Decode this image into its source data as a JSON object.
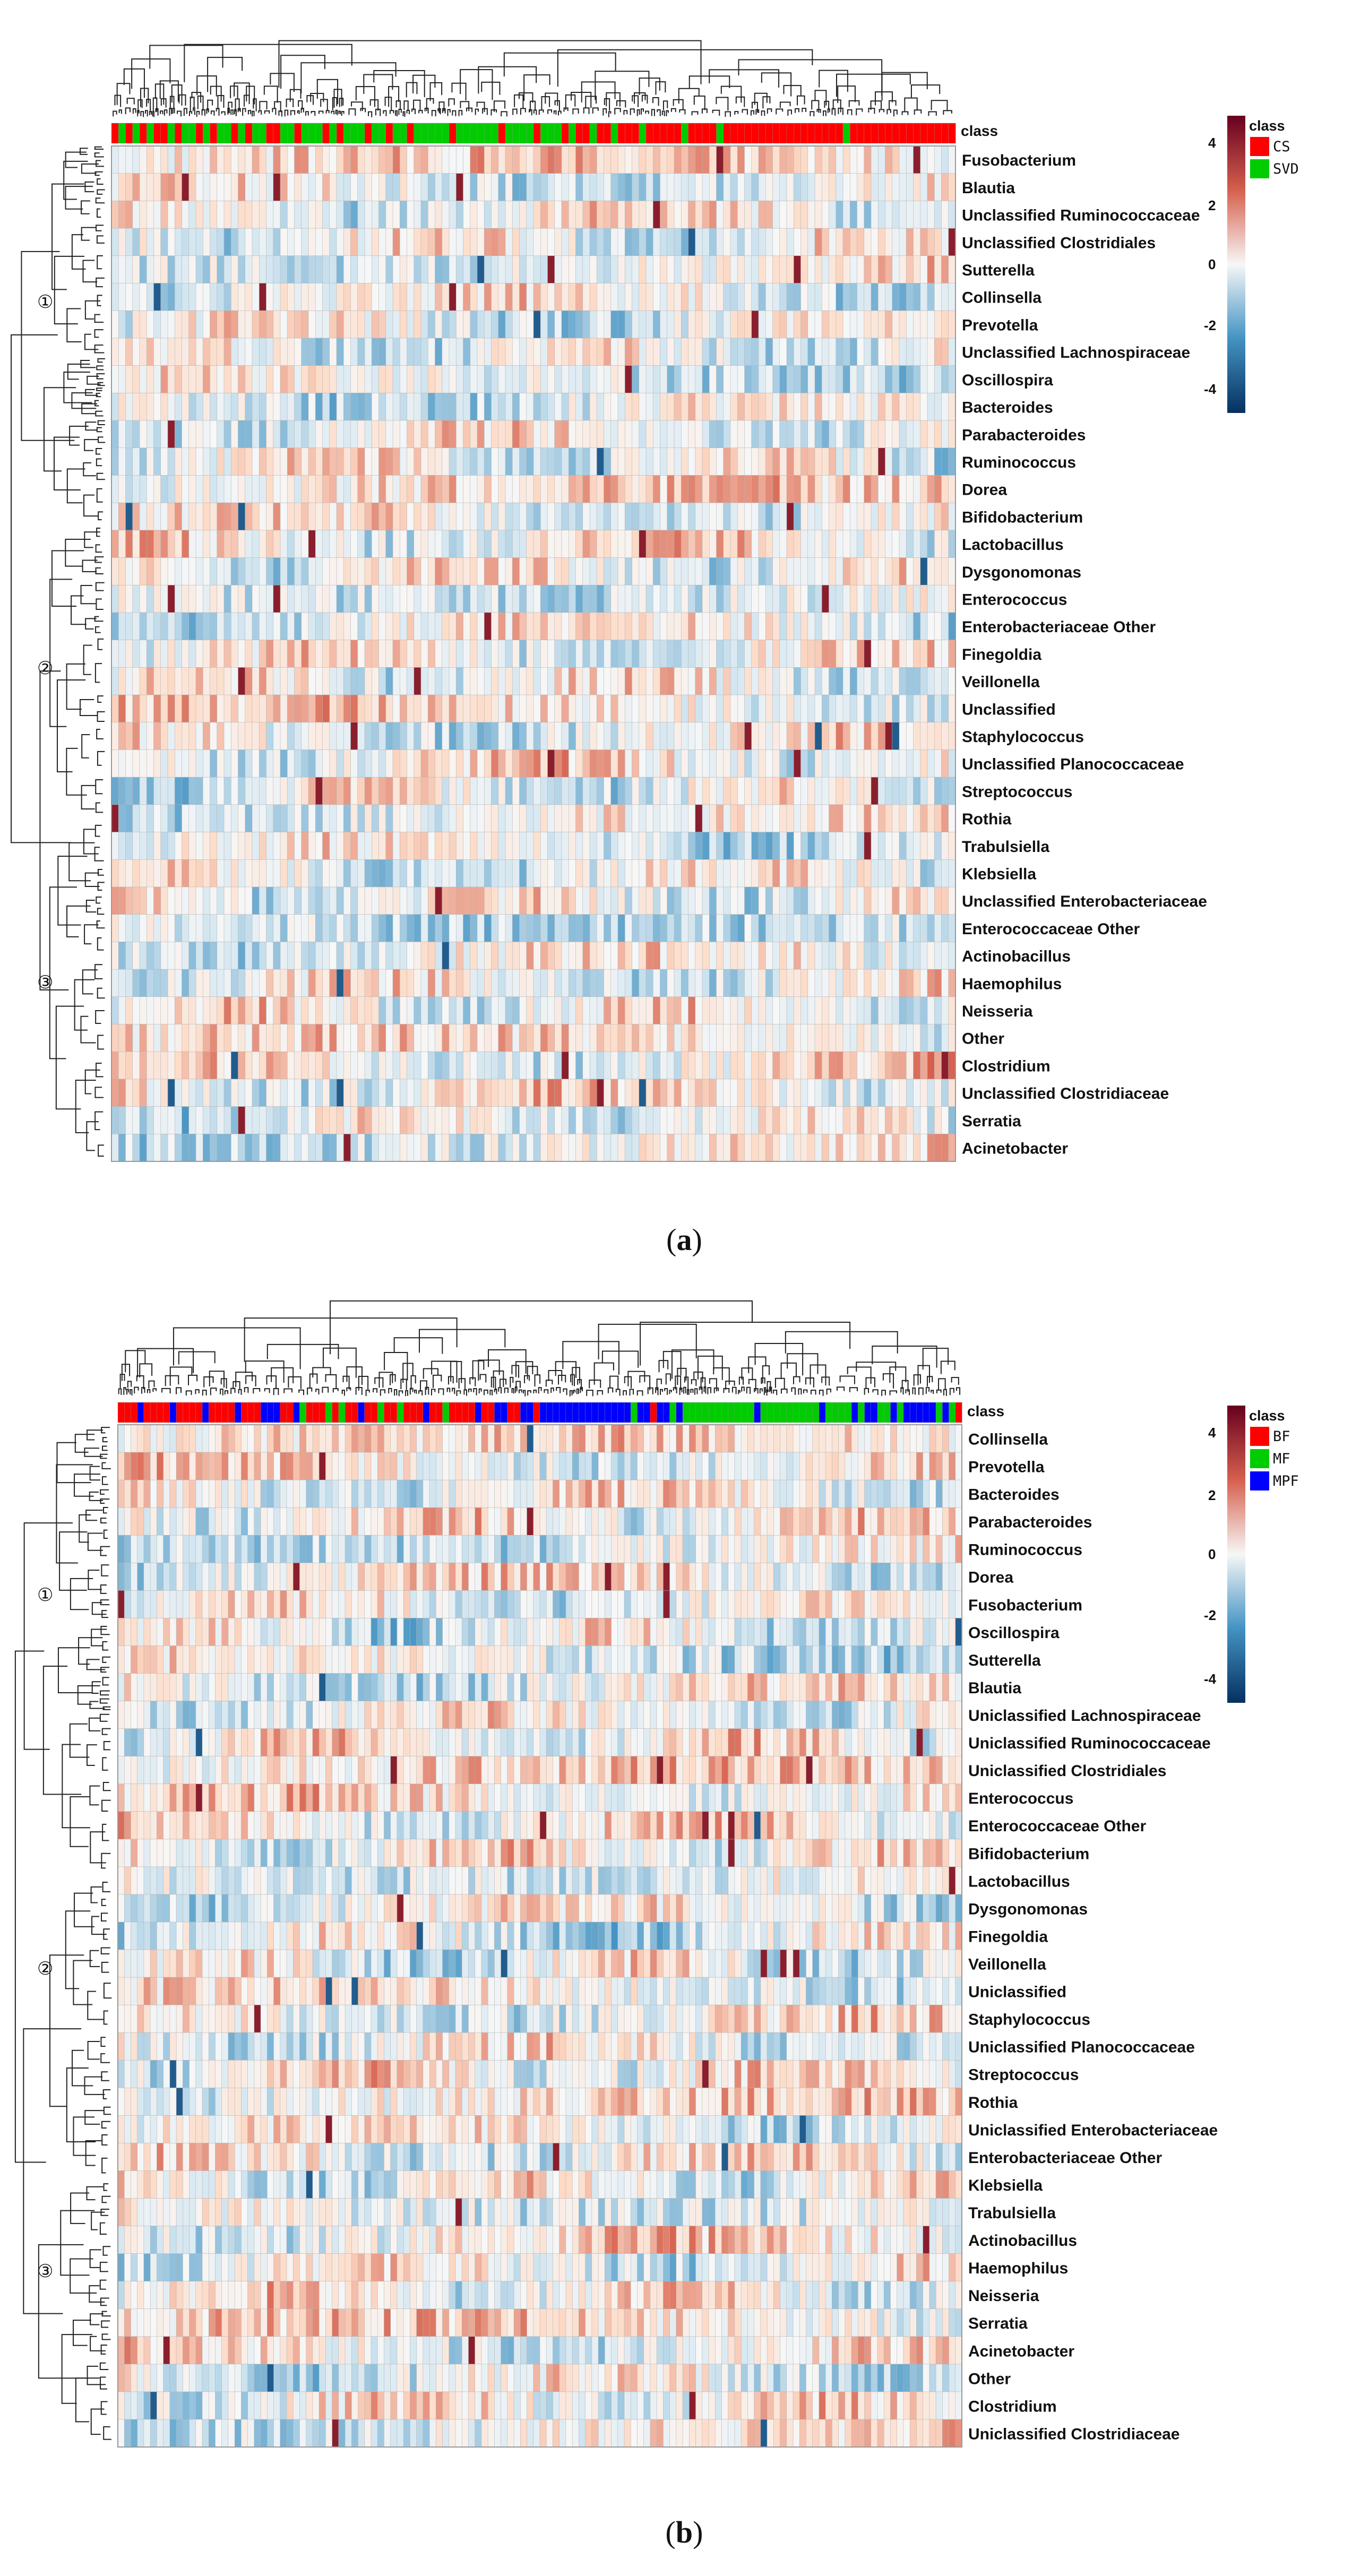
{
  "chart_data": [
    {
      "type": "heatmap",
      "panel": "a",
      "caption": "(a)",
      "class_title": "class",
      "legend": {
        "title": "class",
        "entries": [
          {
            "label": "CS",
            "color": "#ff0000"
          },
          {
            "label": "SVD",
            "color": "#00cc00"
          }
        ]
      },
      "colorbar": {
        "ticks": [
          "4",
          "2",
          "0",
          "-2",
          "-4"
        ],
        "range": [
          -4.5,
          4.5
        ],
        "colors": [
          "#67001f",
          "#d6604d",
          "#f7f7f7",
          "#4393c3",
          "#053061"
        ]
      },
      "cluster_markers": [
        "①",
        "②",
        "③"
      ],
      "rows": [
        "Fusobacterium",
        "Blautia",
        "Unclassified Ruminococcaceae",
        "Unclassified Clostridiales",
        "Sutterella",
        "Collinsella",
        "Prevotella",
        "Unclassified Lachnospiraceae",
        "Oscillospira",
        "Bacteroides",
        "Parabacteroides",
        "Ruminococcus",
        "Dorea",
        "Bifidobacterium",
        "Lactobacillus",
        "Dysgonomonas",
        "Enterococcus",
        "Enterobacteriaceae Other",
        "Finegoldia",
        "Veillonella",
        "Unclassified",
        "Staphylococcus",
        "Unclassified Planococcaceae",
        "Streptococcus",
        "Rothia",
        "Trabulsiella",
        "Klebsiella",
        "Unclassified Enterobacteriaceae",
        "Enterococcaceae Other",
        "Actinobacillus",
        "Haemophilus",
        "Neisseria",
        "Other",
        "Clostridium",
        "Unclassified Clostridiaceae",
        "Serratia",
        "Acinetobacter"
      ],
      "n_samples": 120,
      "sample_classes": "RGRGRGRRGRGGRGRGGRGRGGRRGGRGGGRGRGGGRGGRGGRGGGGGRGGGGGGRGGGGRGGGRGRRGRRGRRRGRRRRRGRRRRGRRRRRRRRRRRRRRRRRGRRRRRRRRRRRRR",
      "class_codes": {
        "R": "CS",
        "G": "SVD"
      },
      "value_range": [
        -4.5,
        4.5
      ]
    },
    {
      "type": "heatmap",
      "panel": "b",
      "caption": "(b)",
      "class_title": "class",
      "legend": {
        "title": "class",
        "entries": [
          {
            "label": "BF",
            "color": "#ff0000"
          },
          {
            "label": "MF",
            "color": "#00cc00"
          },
          {
            "label": "MPF",
            "color": "#0000ff"
          }
        ]
      },
      "colorbar": {
        "ticks": [
          "4",
          "2",
          "0",
          "-2",
          "-4"
        ],
        "range": [
          -4.5,
          4.5
        ],
        "colors": [
          "#67001f",
          "#d6604d",
          "#f7f7f7",
          "#4393c3",
          "#053061"
        ]
      },
      "cluster_markers": [
        "①",
        "②",
        "③"
      ],
      "rows": [
        "Collinsella",
        "Prevotella",
        "Bacteroides",
        "Parabacteroides",
        "Ruminococcus",
        "Dorea",
        "Fusobacterium",
        "Oscillospira",
        "Sutterella",
        "Blautia",
        "Uniclassified Lachnospiraceae",
        "Uniclassified Ruminococcaceae",
        "Uniclassified Clostridiales",
        "Enterococcus",
        "Enterococcaceae Other",
        "Bifidobacterium",
        "Lactobacillus",
        "Dysgonomonas",
        "Finegoldia",
        "Veillonella",
        "Uniclassified",
        "Staphylococcus",
        "Uniclassified Planococcaceae",
        "Streptococcus",
        "Rothia",
        "Uniclassified Enterobacteriaceae",
        "Enterobacteriaceae Other",
        "Klebsiella",
        "Trabulsiella",
        "Actinobacillus",
        "Haemophilus",
        "Neisseria",
        "Serratia",
        "Acinetobacter",
        "Other",
        "Clostridium",
        "Uniclassified Clostridiaceae"
      ],
      "n_samples": 130,
      "sample_classes": "RRRBRRRRBRRRRBRRRRBRRRBBBRRBGRRRGRGRRBRRGRRGRRRBRRGRRRRBRRBBRRBBRBBBBBBBBBBBBBBGBBRBBGBGGGGGGGGGGGBGGGGGGGGGBGGGGBGBBGGBGBBBBBGBGRRG",
      "class_codes": {
        "R": "BF",
        "G": "MF",
        "B": "MPF"
      },
      "value_range": [
        -4.5,
        4.5
      ]
    }
  ]
}
